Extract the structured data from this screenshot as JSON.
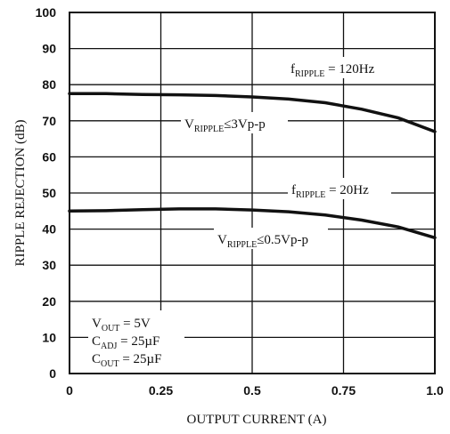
{
  "chart_data": {
    "type": "line",
    "xlabel": "OUTPUT CURRENT (A)",
    "ylabel": "RIPPLE REJECTION (dB)",
    "xlim": [
      0,
      1.0
    ],
    "ylim": [
      0,
      100
    ],
    "x_ticks": [
      "0",
      "0.25",
      "0.5",
      "0.75",
      "1.0"
    ],
    "y_ticks": [
      "0",
      "10",
      "20",
      "30",
      "40",
      "50",
      "60",
      "70",
      "80",
      "90",
      "100"
    ],
    "grid": true,
    "series": [
      {
        "x": [
          0,
          0.1,
          0.2,
          0.3,
          0.4,
          0.5,
          0.6,
          0.7,
          0.8,
          0.9,
          1.0
        ],
        "y": [
          77.5,
          77.5,
          77.3,
          77.2,
          77.0,
          76.6,
          76.0,
          75.0,
          73.2,
          70.8,
          67.0
        ]
      },
      {
        "x": [
          0,
          0.1,
          0.2,
          0.3,
          0.4,
          0.5,
          0.6,
          0.7,
          0.8,
          0.9,
          1.0
        ],
        "y": [
          45.0,
          45.1,
          45.4,
          45.6,
          45.6,
          45.3,
          44.8,
          43.9,
          42.5,
          40.6,
          37.6
        ]
      }
    ],
    "annotations": {
      "f120": {
        "main": "f",
        "sub": "RIPPLE",
        "rest": " = 120Hz"
      },
      "v3": {
        "main": "V",
        "sub": "RIPPLE",
        "rest": "≤3Vp-p"
      },
      "f20": {
        "main": "f",
        "sub": "RIPPLE",
        "rest": " = 20Hz"
      },
      "v05": {
        "main": "V",
        "sub": "RIPPLE",
        "rest": "≤0.5Vp-p"
      },
      "vout": {
        "main": "V",
        "sub": "OUT",
        "rest": " = 5V"
      },
      "cadj": {
        "main": "C",
        "sub": "ADJ",
        "rest": " = 25µF"
      },
      "cout": {
        "main": "C",
        "sub": "OUT",
        "rest": " = 25µF"
      }
    }
  }
}
